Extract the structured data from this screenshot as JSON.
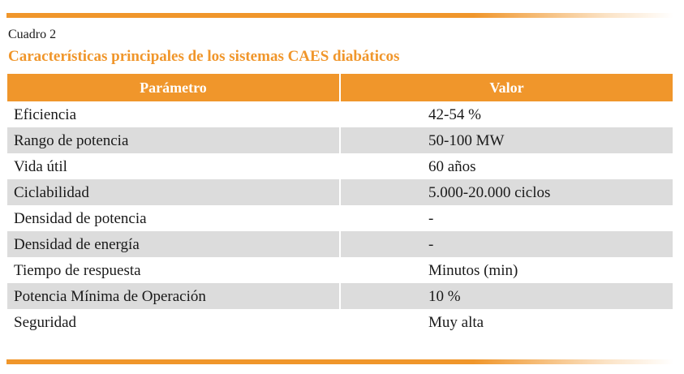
{
  "label": "Cuadro 2",
  "title": "Características principales de los sistemas CAES diabáticos",
  "table": {
    "headers": [
      "Parámetro",
      "Valor"
    ],
    "rows": [
      [
        "Eficiencia",
        "42-54 %"
      ],
      [
        "Rango de potencia",
        "50-100 MW"
      ],
      [
        "Vida útil",
        "60 años"
      ],
      [
        "Ciclabilidad",
        "5.000-20.000 ciclos"
      ],
      [
        "Densidad de potencia",
        "-"
      ],
      [
        "Densidad de energía",
        "-"
      ],
      [
        "Tiempo de respuesta",
        "Minutos (min)"
      ],
      [
        "Potencia Mínima de Operación",
        "10 %"
      ],
      [
        "Seguridad",
        "Muy alta"
      ]
    ]
  },
  "colors": {
    "accent": "#f0962b",
    "row_shade": "#dcdcdc"
  }
}
